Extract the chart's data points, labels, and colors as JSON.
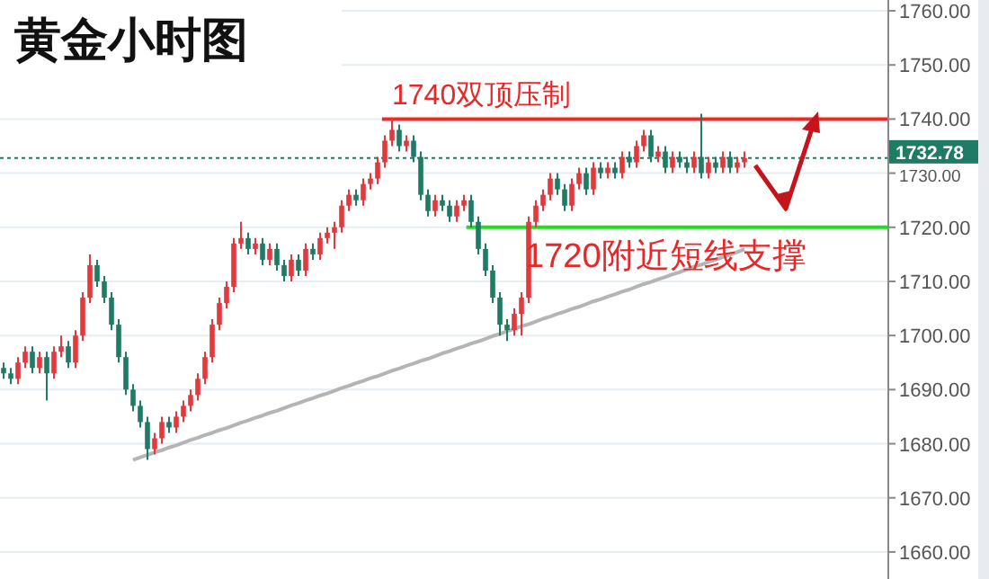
{
  "chart_data": {
    "type": "candlestick",
    "title": "黄金小时图",
    "categories": [
      null,
      null,
      null,
      null,
      null,
      null,
      null,
      null,
      null,
      null,
      null,
      null,
      null,
      null,
      null,
      null,
      null,
      null,
      null,
      null,
      null,
      null,
      null,
      null,
      null,
      null,
      null,
      null,
      null,
      null,
      null,
      null,
      null,
      null,
      null,
      null,
      null,
      null,
      null,
      null,
      null,
      null,
      null,
      null,
      null,
      null,
      null,
      null,
      null,
      null,
      null,
      null,
      null,
      null,
      null,
      null,
      null,
      null,
      null,
      null,
      null,
      null,
      null,
      null,
      null,
      null,
      null,
      null,
      null,
      null,
      null,
      null,
      null,
      null,
      null,
      null,
      null,
      null,
      null,
      null,
      null,
      null,
      null,
      null,
      null,
      null,
      null,
      null,
      null,
      null,
      null,
      null,
      null,
      null,
      null,
      null,
      null,
      null,
      null,
      null,
      null,
      null,
      null,
      null
    ],
    "ohlc": [
      [
        1694,
        1695,
        1692,
        1693
      ],
      [
        1693,
        1694,
        1691,
        1692
      ],
      [
        1692,
        1696,
        1691,
        1695
      ],
      [
        1695,
        1698,
        1694,
        1697
      ],
      [
        1697,
        1698,
        1693,
        1694
      ],
      [
        1694,
        1697,
        1693,
        1696
      ],
      [
        1696,
        1697,
        1688,
        1693
      ],
      [
        1693,
        1698,
        1692,
        1697
      ],
      [
        1697,
        1700,
        1696,
        1698
      ],
      [
        1698,
        1699,
        1694,
        1695
      ],
      [
        1695,
        1701,
        1694,
        1700
      ],
      [
        1700,
        1708,
        1699,
        1707
      ],
      [
        1707,
        1715,
        1706,
        1713
      ],
      [
        1713,
        1714,
        1709,
        1710
      ],
      [
        1710,
        1711,
        1706,
        1707
      ],
      [
        1707,
        1708,
        1701,
        1702
      ],
      [
        1702,
        1703,
        1695,
        1696
      ],
      [
        1696,
        1697,
        1689,
        1690
      ],
      [
        1690,
        1691,
        1686,
        1687
      ],
      [
        1687,
        1688,
        1683,
        1684
      ],
      [
        1684,
        1685,
        1677,
        1679
      ],
      [
        1679,
        1682,
        1678,
        1681
      ],
      [
        1681,
        1685,
        1680,
        1684
      ],
      [
        1684,
        1685,
        1682,
        1683
      ],
      [
        1683,
        1686,
        1682,
        1685
      ],
      [
        1685,
        1688,
        1684,
        1687
      ],
      [
        1687,
        1690,
        1686,
        1689
      ],
      [
        1689,
        1693,
        1688,
        1692
      ],
      [
        1692,
        1697,
        1691,
        1696
      ],
      [
        1696,
        1703,
        1695,
        1702
      ],
      [
        1702,
        1707,
        1701,
        1706
      ],
      [
        1706,
        1710,
        1705,
        1709
      ],
      [
        1709,
        1718,
        1708,
        1717
      ],
      [
        1717,
        1721,
        1716,
        1718
      ],
      [
        1718,
        1719,
        1715,
        1716
      ],
      [
        1716,
        1718,
        1715,
        1717
      ],
      [
        1717,
        1718,
        1713,
        1714
      ],
      [
        1714,
        1717,
        1713,
        1716
      ],
      [
        1716,
        1717,
        1712,
        1713
      ],
      [
        1713,
        1714,
        1710,
        1711
      ],
      [
        1711,
        1715,
        1710,
        1714
      ],
      [
        1714,
        1715,
        1711,
        1712
      ],
      [
        1712,
        1717,
        1711,
        1716
      ],
      [
        1716,
        1717,
        1714,
        1715
      ],
      [
        1715,
        1719,
        1714,
        1718
      ],
      [
        1718,
        1720,
        1717,
        1719
      ],
      [
        1719,
        1721,
        1716,
        1720
      ],
      [
        1720,
        1725,
        1719,
        1724
      ],
      [
        1724,
        1727,
        1723,
        1726
      ],
      [
        1726,
        1727,
        1724,
        1725
      ],
      [
        1725,
        1729,
        1724,
        1728
      ],
      [
        1728,
        1730,
        1727,
        1729
      ],
      [
        1729,
        1733,
        1728,
        1732
      ],
      [
        1732,
        1737,
        1731,
        1736
      ],
      [
        1736,
        1740,
        1735,
        1738
      ],
      [
        1738,
        1739,
        1734,
        1735
      ],
      [
        1735,
        1737,
        1734,
        1736
      ],
      [
        1736,
        1737,
        1732,
        1733
      ],
      [
        1733,
        1734,
        1725,
        1726
      ],
      [
        1726,
        1727,
        1722,
        1723
      ],
      [
        1723,
        1726,
        1722,
        1725
      ],
      [
        1725,
        1726,
        1723,
        1724
      ],
      [
        1724,
        1725,
        1721,
        1722
      ],
      [
        1722,
        1725,
        1721,
        1724
      ],
      [
        1724,
        1726,
        1723,
        1725
      ],
      [
        1725,
        1726,
        1720,
        1721
      ],
      [
        1721,
        1722,
        1715,
        1716
      ],
      [
        1716,
        1717,
        1711,
        1712
      ],
      [
        1712,
        1713,
        1706,
        1707
      ],
      [
        1707,
        1708,
        1700,
        1702
      ],
      [
        1702,
        1703,
        1699,
        1701
      ],
      [
        1701,
        1705,
        1700,
        1704
      ],
      [
        1704,
        1708,
        1700,
        1707
      ],
      [
        1707,
        1722,
        1706,
        1721
      ],
      [
        1721,
        1725,
        1720,
        1724
      ],
      [
        1724,
        1727,
        1723,
        1726
      ],
      [
        1726,
        1730,
        1725,
        1729
      ],
      [
        1729,
        1730,
        1726,
        1727
      ],
      [
        1727,
        1728,
        1723,
        1724
      ],
      [
        1724,
        1729,
        1723,
        1728
      ],
      [
        1728,
        1731,
        1727,
        1730
      ],
      [
        1730,
        1731,
        1726,
        1727
      ],
      [
        1727,
        1732,
        1726,
        1731
      ],
      [
        1731,
        1732,
        1729,
        1730
      ],
      [
        1730,
        1732,
        1729,
        1731
      ],
      [
        1731,
        1732,
        1729,
        1730
      ],
      [
        1730,
        1734,
        1729,
        1733
      ],
      [
        1733,
        1734,
        1731,
        1732
      ],
      [
        1732,
        1736,
        1731,
        1735
      ],
      [
        1735,
        1738,
        1734,
        1737
      ],
      [
        1737,
        1738,
        1732,
        1733
      ],
      [
        1733,
        1735,
        1732,
        1734
      ],
      [
        1734,
        1735,
        1730,
        1731
      ],
      [
        1731,
        1734,
        1730,
        1733
      ],
      [
        1733,
        1734,
        1731,
        1732
      ],
      [
        1732,
        1733,
        1730,
        1731
      ],
      [
        1731,
        1734,
        1730,
        1733
      ],
      [
        1733,
        1741,
        1729,
        1730
      ],
      [
        1730,
        1733,
        1729,
        1732
      ],
      [
        1732,
        1733,
        1730,
        1731
      ],
      [
        1731,
        1734,
        1730,
        1733
      ],
      [
        1733,
        1734,
        1730,
        1731
      ],
      [
        1731,
        1733,
        1730,
        1732
      ],
      [
        1732,
        1734,
        1731,
        1732.78
      ]
    ],
    "series": [
      {
        "type": "line",
        "color": "#b4b4b4",
        "values": [
          null,
          null,
          null,
          null,
          null,
          null,
          null,
          null,
          null,
          null,
          null,
          null,
          null,
          null,
          null,
          null,
          null,
          null,
          1677.0,
          1677.5,
          1677.9,
          1678.4,
          1678.8,
          1679.3,
          1679.7,
          1680.2,
          1680.7,
          1681.1,
          1681.6,
          1682.0,
          1682.5,
          1682.9,
          1683.4,
          1683.9,
          1684.3,
          1684.8,
          1685.2,
          1685.7,
          1686.1,
          1686.6,
          1687.1,
          1687.5,
          1688.0,
          1688.4,
          1688.9,
          1689.3,
          1689.8,
          1690.3,
          1690.7,
          1691.2,
          1691.6,
          1692.1,
          1692.5,
          1693.0,
          1693.5,
          1693.9,
          1694.4,
          1694.8,
          1695.3,
          1695.7,
          1696.2,
          1696.7,
          1697.1,
          1697.6,
          1698.0,
          1698.5,
          1698.9,
          1699.4,
          1699.9,
          1700.3,
          1700.8,
          1701.2,
          1701.7,
          1702.1,
          1702.6,
          1703.1,
          1703.5,
          1704.0,
          1704.4,
          1704.9,
          1705.3,
          1705.8,
          1706.3,
          1706.7,
          1707.2,
          1707.6,
          1708.1,
          1708.5,
          1709.0,
          1709.5,
          1709.9,
          1710.4,
          1710.8,
          1711.3,
          1711.7,
          1712.2,
          1712.7,
          1713.1,
          1713.6,
          1714.0,
          1714.5,
          1714.9,
          1715.4,
          1715.9
        ]
      }
    ],
    "ylim": [
      1655,
      1762
    ],
    "yticks": [
      {
        "value": 1660,
        "label": "1660.00"
      },
      {
        "value": 1670,
        "label": "1670.00"
      },
      {
        "value": 1680,
        "label": "1680.00"
      },
      {
        "value": 1690,
        "label": "1690.00"
      },
      {
        "value": 1700,
        "label": "1700.00"
      },
      {
        "value": 1710,
        "label": "1710.00"
      },
      {
        "value": 1720,
        "label": "1720.00"
      },
      {
        "value": 1730,
        "label": "1730.00"
      },
      {
        "value": 1740,
        "label": "1740.00"
      },
      {
        "value": 1750,
        "label": "1750.00"
      },
      {
        "value": 1760,
        "label": "1760.00"
      }
    ],
    "ref_lines": [
      {
        "axis": "y",
        "value": 1740,
        "label": "1740双顶压制",
        "color": "#f02828",
        "line_style": "solid"
      },
      {
        "axis": "y",
        "value": 1720,
        "label": "1720附近短线支撑",
        "color": "#22dd22",
        "line_style": "solid"
      },
      {
        "axis": "y",
        "value": 1732.78,
        "label": "1732.78",
        "color": "#1e7b66",
        "line_style": "dotted"
      }
    ],
    "grid": "y",
    "tick_labels": "y"
  }
}
